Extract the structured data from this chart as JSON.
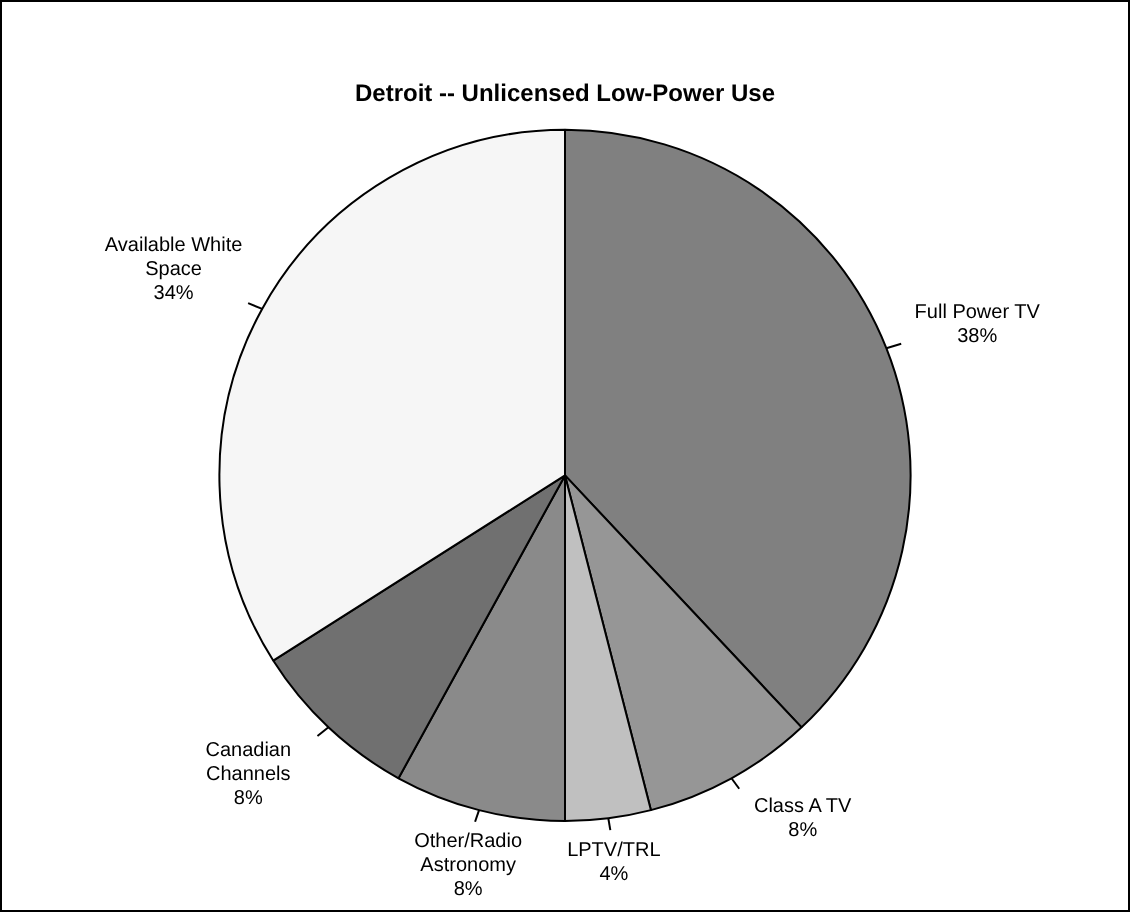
{
  "chart_data": {
    "type": "pie",
    "title": "Detroit -- Unlicensed Low-Power Use",
    "categories": [
      "Full Power TV",
      "Class A TV",
      "LPTV/TRL",
      "Other/Radio Astronomy",
      "Canadian Channels",
      "Available White Space"
    ],
    "values": [
      38,
      8,
      4,
      8,
      8,
      34
    ],
    "value_labels": [
      "38%",
      "8%",
      "4%",
      "8%",
      "8%",
      "34%"
    ],
    "colors": [
      "#808080",
      "#969696",
      "#c0c0c0",
      "#8a8a8a",
      "#707070",
      "#f6f6f6"
    ],
    "legend": false
  }
}
